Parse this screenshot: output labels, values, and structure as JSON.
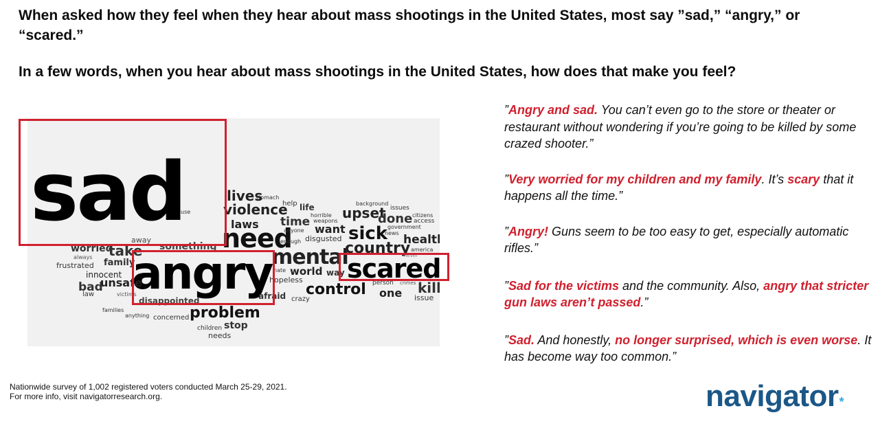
{
  "headline": "When asked how they feel when they hear about mass shootings in the United States, most say ”sad,” “angry,” or “scared.”",
  "question": "In a few words, when you hear about mass shootings in the United States, how does that make you feel?",
  "word_cloud": {
    "words": [
      {
        "text": "sad",
        "weight": 10
      },
      {
        "text": "angry",
        "weight": 8
      },
      {
        "text": "scared",
        "weight": 6
      },
      {
        "text": "need",
        "weight": 5
      },
      {
        "text": "mental",
        "weight": 4
      },
      {
        "text": "problem",
        "weight": 3
      },
      {
        "text": "control",
        "weight": 3
      },
      {
        "text": "sick",
        "weight": 3
      },
      {
        "text": "country",
        "weight": 3
      },
      {
        "text": "upset",
        "weight": 3
      },
      {
        "text": "violence",
        "weight": 3
      },
      {
        "text": "lives",
        "weight": 3
      },
      {
        "text": "laws",
        "weight": 2
      },
      {
        "text": "done",
        "weight": 2
      },
      {
        "text": "health",
        "weight": 2
      },
      {
        "text": "time",
        "weight": 2
      },
      {
        "text": "want",
        "weight": 2
      },
      {
        "text": "kill",
        "weight": 2
      },
      {
        "text": "take",
        "weight": 2
      },
      {
        "text": "world",
        "weight": 2
      },
      {
        "text": "one",
        "weight": 2
      },
      {
        "text": "bad",
        "weight": 2
      },
      {
        "text": "unsafe",
        "weight": 2
      },
      {
        "text": "family",
        "weight": 1
      },
      {
        "text": "stop",
        "weight": 1
      },
      {
        "text": "worried",
        "weight": 1
      },
      {
        "text": "something",
        "weight": 1
      },
      {
        "text": "life",
        "weight": 1
      },
      {
        "text": "innocent",
        "weight": 1
      },
      {
        "text": "frustrated",
        "weight": 1
      },
      {
        "text": "disappointed",
        "weight": 1
      },
      {
        "text": "afraid",
        "weight": 1
      },
      {
        "text": "needs",
        "weight": 1
      },
      {
        "text": "issue",
        "weight": 1
      },
      {
        "text": "hopeless",
        "weight": 1
      },
      {
        "text": "disgusted",
        "weight": 1
      },
      {
        "text": "away",
        "weight": 1
      },
      {
        "text": "concerned",
        "weight": 1
      },
      {
        "text": "help",
        "weight": 1
      },
      {
        "text": "crazy",
        "weight": 1
      },
      {
        "text": "law",
        "weight": 1
      },
      {
        "text": "children",
        "weight": 1
      },
      {
        "text": "families",
        "weight": 1
      },
      {
        "text": "anything",
        "weight": 1
      },
      {
        "text": "victims",
        "weight": 1
      },
      {
        "text": "always",
        "weight": 1
      },
      {
        "text": "enough",
        "weight": 1
      },
      {
        "text": "anyone",
        "weight": 1
      },
      {
        "text": "horrible",
        "weight": 1
      },
      {
        "text": "weapons",
        "weight": 1
      },
      {
        "text": "stomach",
        "weight": 1
      },
      {
        "text": "background",
        "weight": 1
      },
      {
        "text": "issues",
        "weight": 1
      },
      {
        "text": "citizens",
        "weight": 1
      },
      {
        "text": "access",
        "weight": 1
      },
      {
        "text": "government",
        "weight": 1
      },
      {
        "text": "news",
        "weight": 1
      },
      {
        "text": "america",
        "weight": 1
      },
      {
        "text": "never",
        "weight": 1
      },
      {
        "text": "person",
        "weight": 1
      },
      {
        "text": "crimes",
        "weight": 1
      },
      {
        "text": "hate",
        "weight": 1
      },
      {
        "text": "way",
        "weight": 1
      },
      {
        "text": "use",
        "weight": 1
      }
    ]
  },
  "quotes": [
    {
      "parts": [
        {
          "t": "”",
          "red": false
        },
        {
          "t": "Angry and sad.",
          "red": true
        },
        {
          "t": " You can’t even go to the store or theater or restaurant without wondering if you’re going to be killed by some crazed shooter.”",
          "red": false
        }
      ]
    },
    {
      "parts": [
        {
          "t": "”",
          "red": false
        },
        {
          "t": "Very worried for my children and my family",
          "red": true
        },
        {
          "t": ". It’s ",
          "red": false
        },
        {
          "t": "scary",
          "red": true
        },
        {
          "t": " that it happens all the time.”",
          "red": false
        }
      ]
    },
    {
      "parts": [
        {
          "t": "”",
          "red": false
        },
        {
          "t": "Angry!",
          "red": true
        },
        {
          "t": " Guns seem to be too easy to get, especially automatic rifles.”",
          "red": false
        }
      ]
    },
    {
      "parts": [
        {
          "t": "”",
          "red": false
        },
        {
          "t": "Sad for the victims",
          "red": true
        },
        {
          "t": " and the community. Also, ",
          "red": false
        },
        {
          "t": "angry that stricter gun laws aren’t passed",
          "red": true
        },
        {
          "t": ".”",
          "red": false
        }
      ]
    },
    {
      "parts": [
        {
          "t": "”",
          "red": false
        },
        {
          "t": "Sad.",
          "red": true
        },
        {
          "t": " And honestly, ",
          "red": false
        },
        {
          "t": "no longer surprised, which is even worse",
          "red": true
        },
        {
          "t": ". It has become way too common.”",
          "red": false
        }
      ]
    }
  ],
  "footnote": {
    "line1": "Nationwide survey of 1,002 registered voters conducted March 25-29, 2021.",
    "line2": "For more info, visit navigatorresearch.org."
  },
  "logo": {
    "text": "navigator",
    "mark": "*"
  },
  "colors": {
    "highlight": "#d0202e",
    "logo": "#1b5787",
    "logo_mark": "#2fa8e0"
  }
}
